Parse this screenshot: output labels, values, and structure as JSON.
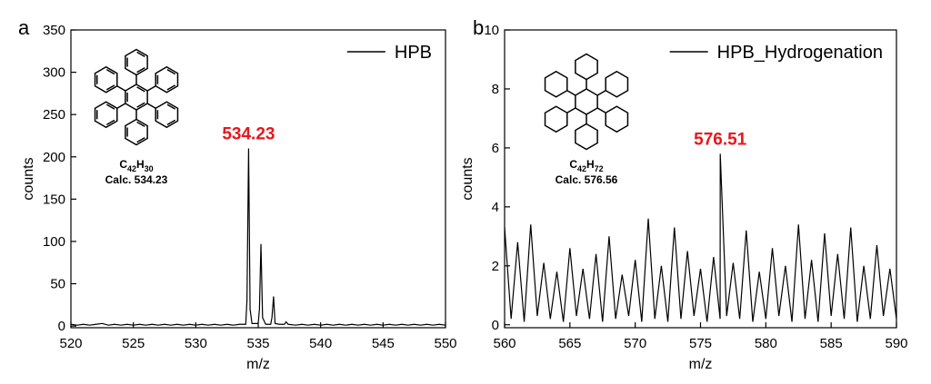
{
  "chart_data": [
    {
      "type": "line",
      "panel_label": "a",
      "xlabel": "m/z",
      "ylabel": "counts",
      "x": [
        520,
        520.5,
        521,
        521.5,
        522,
        522.5,
        523,
        523.5,
        524,
        524.5,
        525,
        525.5,
        526,
        526.5,
        527,
        527.5,
        528,
        528.5,
        529,
        529.5,
        530,
        530.5,
        531,
        531.5,
        532,
        532.5,
        533,
        533.5,
        534,
        534.1,
        534.23,
        534.35,
        534.5,
        535,
        535.1,
        535.22,
        535.35,
        535.6,
        536,
        536.1,
        536.23,
        536.35,
        536.7,
        537.1,
        537.23,
        537.4,
        538,
        538.5,
        539,
        539.5,
        540,
        540.5,
        541,
        541.5,
        542,
        542.5,
        543,
        543.5,
        544,
        544.5,
        545,
        545.5,
        546,
        546.5,
        547,
        547.5,
        548,
        548.5,
        549,
        549.5,
        550
      ],
      "series": [
        {
          "name": "HPB",
          "color": "#000000",
          "values": [
            2,
            1,
            2,
            1,
            2,
            3,
            1,
            2,
            1,
            2,
            1,
            2,
            1,
            2,
            1,
            2,
            1,
            2,
            1,
            2,
            1,
            2,
            1,
            2,
            1,
            2,
            1,
            2,
            2,
            30,
            210,
            20,
            3,
            3,
            20,
            97,
            10,
            2,
            2,
            10,
            35,
            3,
            2,
            2,
            5,
            2,
            1,
            2,
            1,
            2,
            1,
            2,
            1,
            2,
            1,
            2,
            1,
            2,
            1,
            2,
            1,
            2,
            1,
            2,
            1,
            2,
            1,
            2,
            1,
            2,
            1
          ]
        }
      ],
      "xlim": [
        520,
        550
      ],
      "ylim": [
        -2,
        350
      ],
      "xticks": [
        520,
        525,
        530,
        535,
        540,
        545,
        550
      ],
      "yticks": [
        0,
        50,
        100,
        150,
        200,
        250,
        300,
        350
      ],
      "peak_label": "534.23",
      "peak_label_color": "#e8161b",
      "formula": [
        "C",
        "42",
        "H",
        "30"
      ],
      "calc_label": "Calc. 534.23",
      "legend": "upper right"
    },
    {
      "type": "line",
      "panel_label": "b",
      "xlabel": "m/z",
      "ylabel": "counts",
      "x": [
        560,
        560.5,
        561,
        561.5,
        562,
        562.5,
        563,
        563.5,
        564,
        564.5,
        565,
        565.5,
        566,
        566.5,
        567,
        567.5,
        568,
        568.5,
        569,
        569.5,
        570,
        570.5,
        571,
        571.5,
        572,
        572.5,
        573,
        573.5,
        574,
        574.5,
        575,
        575.5,
        576,
        576.5,
        576.51,
        577,
        577.5,
        578,
        578.5,
        579,
        579.5,
        580,
        580.5,
        581,
        581.5,
        582,
        582.5,
        583,
        583.5,
        584,
        584.5,
        585,
        585.5,
        586,
        586.5,
        587,
        587.5,
        588,
        588.5,
        589,
        589.5,
        590
      ],
      "series": [
        {
          "name": "HPB_Hydrogenation",
          "color": "#000000",
          "values": [
            3.3,
            0.2,
            2.8,
            0.1,
            3.4,
            0.3,
            2.1,
            0.2,
            1.8,
            0.1,
            2.6,
            0.3,
            1.9,
            0.2,
            2.4,
            0.1,
            3.0,
            0.2,
            1.7,
            0.3,
            2.2,
            0.1,
            3.6,
            0.2,
            2.0,
            0.1,
            3.3,
            0.2,
            2.5,
            0.3,
            1.9,
            0.1,
            2.3,
            0.2,
            5.8,
            0.3,
            2.1,
            0.2,
            3.2,
            0.1,
            1.8,
            0.2,
            2.6,
            0.3,
            2.0,
            0.1,
            3.4,
            0.2,
            2.2,
            0.1,
            3.1,
            0.3,
            2.4,
            0.2,
            3.3,
            0.1,
            2.0,
            0.2,
            2.7,
            0.3,
            1.9,
            0.2
          ]
        }
      ],
      "xlim": [
        560,
        590
      ],
      "ylim": [
        -0.1,
        10
      ],
      "xticks": [
        560,
        565,
        570,
        575,
        580,
        585,
        590
      ],
      "yticks": [
        0,
        2,
        4,
        6,
        8,
        10
      ],
      "peak_label": "576.51",
      "peak_label_color": "#e8161b",
      "formula": [
        "C",
        "42",
        "H",
        "72"
      ],
      "calc_label": "Calc. 576.56",
      "legend": "upper right"
    }
  ]
}
